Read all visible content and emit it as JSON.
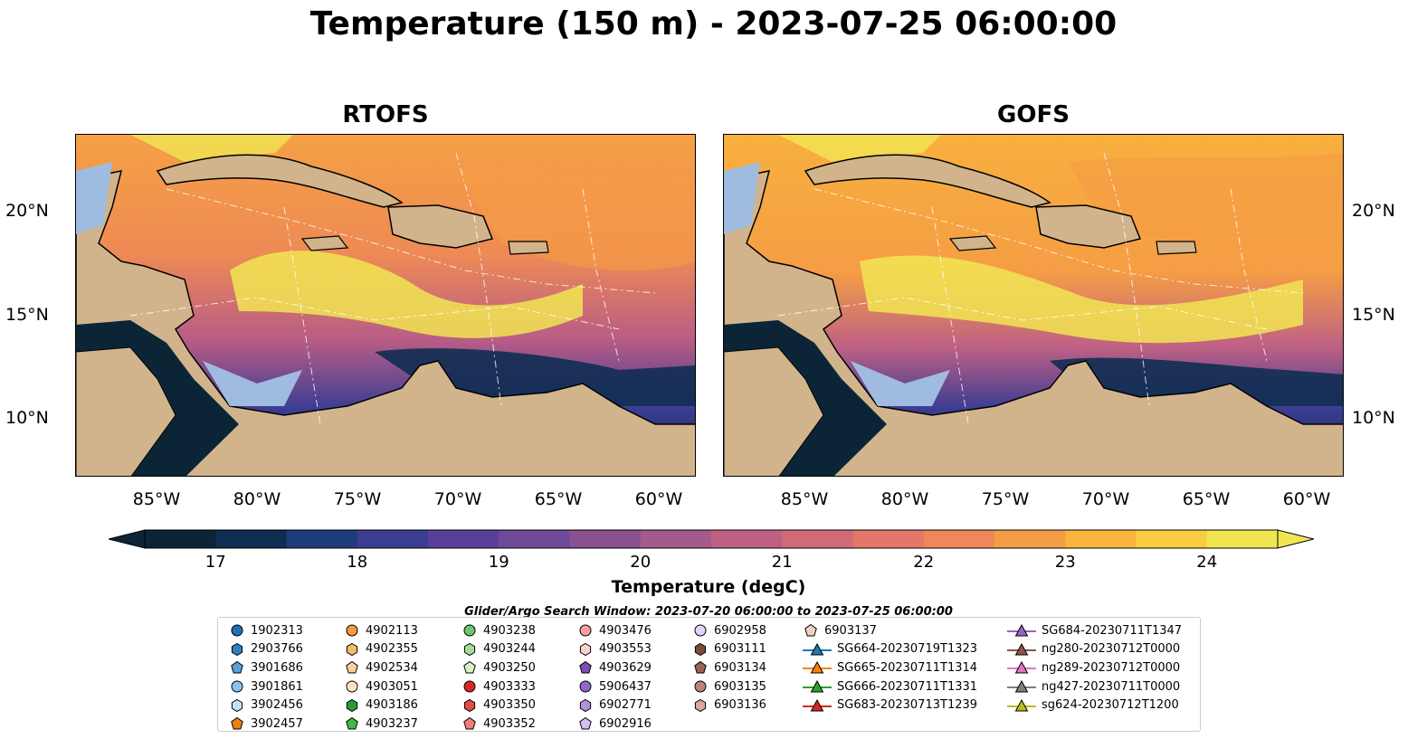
{
  "title": "Temperature (150 m) - 2023-07-25 06:00:00",
  "panels": [
    {
      "title": "RTOFS"
    },
    {
      "title": "GOFS"
    }
  ],
  "axes": {
    "lon_labels": [
      "85°W",
      "80°W",
      "75°W",
      "70°W",
      "65°W",
      "60°W"
    ],
    "lat_labels": [
      "20°N",
      "15°N",
      "10°N"
    ]
  },
  "colorbar": {
    "label": "Temperature (degC)",
    "ticks": [
      "17",
      "18",
      "19",
      "20",
      "21",
      "22",
      "23",
      "24"
    ],
    "min": 16.5,
    "max": 24.5,
    "step": 0.5,
    "colors": [
      "#0b2536",
      "#0f2d52",
      "#1f3c7a",
      "#3b3d93",
      "#5a3f9a",
      "#6f4a98",
      "#8a5191",
      "#a45a8b",
      "#be6084",
      "#d06a78",
      "#e2776a",
      "#ee875a",
      "#f59d45",
      "#fab53c",
      "#f9cd3f",
      "#f1e552"
    ],
    "extend": "both"
  },
  "window_text": "Glider/Argo Search Window: 2023-07-20 06:00:00 to 2023-07-25 06:00:00",
  "colors": {
    "land": "#d2b48c",
    "shelf": "#9fbce0",
    "deep_blue": "#0b2536"
  },
  "legend": {
    "columns": [
      [
        {
          "label": "1902313",
          "marker": "circle",
          "color": "#1f6fb4"
        },
        {
          "label": "2903766",
          "marker": "hexagon",
          "color": "#2c7fc0"
        },
        {
          "label": "3901686",
          "marker": "pentagon",
          "color": "#5a9fd6"
        },
        {
          "label": "3901861",
          "marker": "circle",
          "color": "#8ec2ee"
        },
        {
          "label": "3902456",
          "marker": "hexagon",
          "color": "#c6e1f6"
        },
        {
          "label": "3902457",
          "marker": "pentagon",
          "color": "#f07f14"
        }
      ],
      [
        {
          "label": "4902113",
          "marker": "circle",
          "color": "#f59a3e"
        },
        {
          "label": "4902355",
          "marker": "hexagon",
          "color": "#f8b96b"
        },
        {
          "label": "4902534",
          "marker": "pentagon",
          "color": "#fbcf99"
        },
        {
          "label": "4903051",
          "marker": "circle",
          "color": "#fde3c0"
        },
        {
          "label": "4903186",
          "marker": "hexagon",
          "color": "#2b9a34"
        },
        {
          "label": "4903237",
          "marker": "pentagon",
          "color": "#43b94a"
        }
      ],
      [
        {
          "label": "4903238",
          "marker": "circle",
          "color": "#70c66b"
        },
        {
          "label": "4903244",
          "marker": "hexagon",
          "color": "#a4dd97"
        },
        {
          "label": "4903250",
          "marker": "pentagon",
          "color": "#d6f2c8"
        },
        {
          "label": "4903333",
          "marker": "circle",
          "color": "#d42a25"
        },
        {
          "label": "4903350",
          "marker": "hexagon",
          "color": "#e04d45"
        },
        {
          "label": "4903352",
          "marker": "pentagon",
          "color": "#f07e78"
        }
      ],
      [
        {
          "label": "4903476",
          "marker": "circle",
          "color": "#f79f9b"
        },
        {
          "label": "4903553",
          "marker": "hexagon",
          "color": "#fcd1cd"
        },
        {
          "label": "4903629",
          "marker": "pentagon",
          "color": "#7b4fb3"
        },
        {
          "label": "5906437",
          "marker": "circle",
          "color": "#9266c6"
        },
        {
          "label": "6902771",
          "marker": "hexagon",
          "color": "#b293da"
        },
        {
          "label": "6902916",
          "marker": "pentagon",
          "color": "#d3bff0"
        }
      ],
      [
        {
          "label": "6902958",
          "marker": "circle",
          "color": "#e3d5f7"
        },
        {
          "label": "6903111",
          "marker": "hexagon",
          "color": "#7a4a3c"
        },
        {
          "label": "6903134",
          "marker": "pentagon",
          "color": "#9a6354"
        },
        {
          "label": "6903135",
          "marker": "circle",
          "color": "#bb8476"
        },
        {
          "label": "6903136",
          "marker": "hexagon",
          "color": "#d9a89a"
        }
      ],
      [
        {
          "label": "6903137",
          "marker": "pentagon",
          "color": "#f3cfc3"
        },
        {
          "label": "SG664-20230719T1323",
          "marker": "triangle-line",
          "color": "#1f77b4"
        },
        {
          "label": "SG665-20230711T1314",
          "marker": "triangle-line",
          "color": "#ff7f0e"
        },
        {
          "label": "SG666-20230711T1331",
          "marker": "triangle-line",
          "color": "#2ca02c"
        },
        {
          "label": "SG683-20230713T1239",
          "marker": "triangle-line",
          "color": "#d62728"
        }
      ],
      [
        {
          "label": "SG684-20230711T1347",
          "marker": "triangle-line",
          "color": "#9467bd"
        },
        {
          "label": "ng280-20230712T0000",
          "marker": "triangle-line",
          "color": "#8c564b"
        },
        {
          "label": "ng289-20230712T0000",
          "marker": "triangle-line",
          "color": "#e377c2"
        },
        {
          "label": "ng427-20230711T0000",
          "marker": "triangle-line",
          "color": "#7f7f7f"
        },
        {
          "label": "sg624-20230712T1200",
          "marker": "triangle-line",
          "color": "#bcbd22"
        }
      ]
    ]
  }
}
